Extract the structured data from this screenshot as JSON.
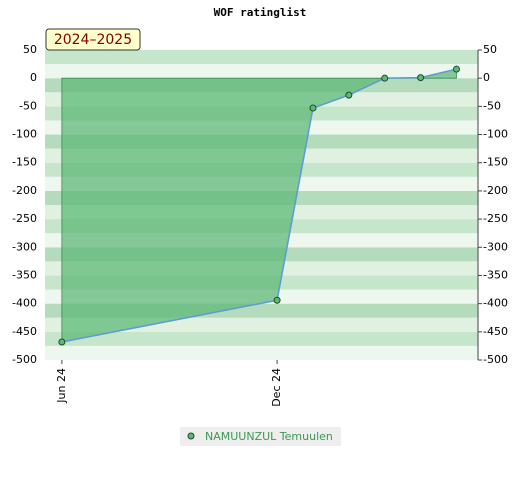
{
  "chart_data": {
    "type": "area",
    "title": "WOF ratinglist",
    "annotation": "2024–2025",
    "x": [
      0,
      6,
      7,
      8,
      9,
      10,
      11
    ],
    "xlim": [
      -0.47,
      11.6
    ],
    "xticks": [
      {
        "value": 0,
        "label": "Jun 24"
      },
      {
        "value": 6,
        "label": "Dec 24"
      }
    ],
    "ylim": [
      -500,
      50
    ],
    "yticks": [
      50,
      0,
      -50,
      -100,
      -150,
      -200,
      -250,
      -300,
      -350,
      -400,
      -450,
      -500
    ],
    "grid": true,
    "series": [
      {
        "name": "NAMUUNZUL Temuulen",
        "color": "#5fb878",
        "line_color": "#5b9bd5",
        "values": [
          -468,
          -394,
          -53,
          -30,
          0,
          1,
          16
        ]
      }
    ]
  }
}
